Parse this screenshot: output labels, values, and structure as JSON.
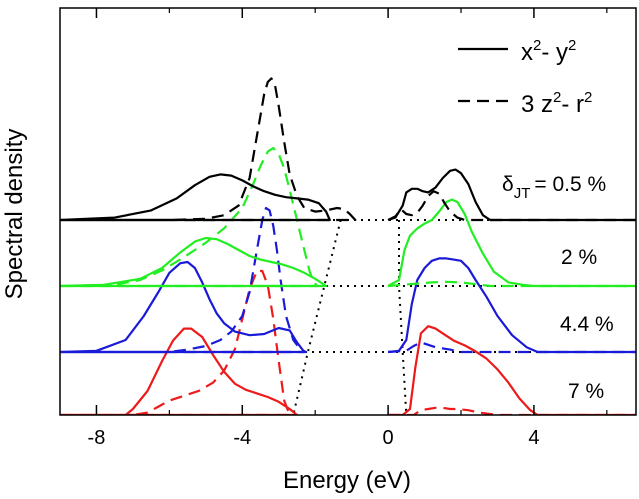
{
  "chart_data": {
    "type": "line",
    "title": "",
    "xlabel": "Energy (eV)",
    "ylabel": "Spectral density",
    "xlim": [
      -9,
      6.8
    ],
    "xticks": [
      -8,
      -4,
      0,
      4
    ],
    "xtick_labels": [
      "-8",
      "-4",
      "0",
      "4"
    ],
    "legend": {
      "placement": "top-right",
      "entries": [
        {
          "style": "solid",
          "label_base": "x",
          "sup1": "2",
          "mid": "- y",
          "sup2": "2"
        },
        {
          "style": "dashed",
          "label_base": "3 z",
          "sup1": "2",
          "mid": "- r",
          "sup2": "2"
        }
      ]
    },
    "label_prefix": "δ",
    "label_subscript": "JT",
    "label_eq": "= 0.5 %",
    "panels": [
      {
        "label": "= 0.5 %",
        "color": "#000000",
        "series": [
          {
            "name": "x²-y²",
            "style": "solid",
            "x": [
              -9,
              -7.5,
              -6.5,
              -5.8,
              -5.3,
              -4.9,
              -4.6,
              -4.3,
              -4,
              -3.7,
              -3.4,
              -3.1,
              -2.8,
              -2.5,
              -2.2,
              -1.9,
              -1.7,
              -1.6,
              -9
            ],
            "y": [
              0,
              0.02,
              0.08,
              0.18,
              0.29,
              0.36,
              0.38,
              0.37,
              0.33,
              0.28,
              0.24,
              0.21,
              0.19,
              0.18,
              0.17,
              0.14,
              0.07,
              0,
              0
            ]
          },
          {
            "name": "x²-y²",
            "style": "solid",
            "x": [
              0,
              0.2,
              0.4,
              0.5,
              0.65,
              0.8,
              0.95,
              1.1,
              1.3,
              1.5,
              1.7,
              1.85,
              2.0,
              2.2,
              2.4,
              2.6,
              2.8,
              6.8
            ],
            "y": [
              0,
              0.02,
              0.12,
              0.23,
              0.26,
              0.26,
              0.24,
              0.23,
              0.27,
              0.35,
              0.41,
              0.42,
              0.39,
              0.3,
              0.15,
              0.04,
              0,
              0
            ]
          },
          {
            "name": "3z²-r²",
            "style": "dashed",
            "x": [
              -9,
              -6,
              -5,
              -4.5,
              -4.1,
              -3.8,
              -3.6,
              -3.4,
              -3.3,
              -3.2,
              -3.1,
              -3.0,
              -2.85,
              -2.7,
              -2.5,
              -2.3,
              -2.0,
              -1.7,
              -1.4,
              -1.2,
              -1.05,
              -0.9,
              -9
            ],
            "y": [
              0,
              0,
              0.01,
              0.04,
              0.12,
              0.35,
              0.7,
              1.05,
              1.15,
              1.18,
              1.12,
              0.95,
              0.65,
              0.38,
              0.2,
              0.1,
              0.07,
              0.08,
              0.1,
              0.09,
              0.05,
              0,
              0
            ]
          },
          {
            "name": "3z²-r²",
            "style": "dashed",
            "x": [
              0,
              0.2,
              0.35,
              0.5,
              0.65,
              0.8,
              0.95,
              1.1,
              1.25,
              1.4,
              1.55,
              1.7,
              1.9,
              2.1,
              6.8
            ],
            "y": [
              0,
              0.03,
              0.09,
              0.05,
              0.04,
              0.06,
              0.12,
              0.2,
              0.24,
              0.22,
              0.14,
              0.07,
              0.02,
              0,
              0
            ]
          }
        ]
      },
      {
        "label": "2 %",
        "color": "#22ee22",
        "series": [
          {
            "name": "x²-y²",
            "style": "solid",
            "x": [
              -9,
              -7.8,
              -6.8,
              -6.2,
              -5.7,
              -5.3,
              -5.0,
              -4.7,
              -4.4,
              -4.1,
              -3.8,
              -3.5,
              -3.2,
              -2.9,
              -2.6,
              -2.3,
              -2.0,
              -1.8,
              -1.7,
              -9
            ],
            "y": [
              0,
              0.01,
              0.06,
              0.15,
              0.28,
              0.37,
              0.4,
              0.39,
              0.35,
              0.3,
              0.25,
              0.22,
              0.2,
              0.18,
              0.15,
              0.11,
              0.06,
              0.02,
              0,
              0
            ]
          },
          {
            "name": "x²-y²",
            "style": "solid",
            "x": [
              0,
              0.3,
              0.45,
              0.6,
              0.8,
              1.0,
              1.2,
              1.4,
              1.6,
              1.75,
              1.9,
              2.1,
              2.3,
              2.6,
              2.9,
              3.3,
              3.7,
              4.0,
              6.8
            ],
            "y": [
              0,
              0.05,
              0.3,
              0.42,
              0.48,
              0.52,
              0.55,
              0.62,
              0.7,
              0.72,
              0.7,
              0.6,
              0.45,
              0.27,
              0.12,
              0.03,
              0.01,
              0,
              0
            ]
          },
          {
            "name": "3z²-r²",
            "style": "dashed",
            "x": [
              -9,
              -7.5,
              -6.8,
              -6.2,
              -5.6,
              -5.0,
              -4.5,
              -4.0,
              -3.7,
              -3.5,
              -3.3,
              -3.15,
              -3.0,
              -2.85,
              -2.7,
              -2.5,
              -2.3,
              -2.15,
              -2.05,
              -1.95,
              -9
            ],
            "y": [
              0,
              0.01,
              0.05,
              0.13,
              0.24,
              0.36,
              0.48,
              0.65,
              0.85,
              1.0,
              1.12,
              1.15,
              1.1,
              0.98,
              0.8,
              0.55,
              0.3,
              0.12,
              0.04,
              0,
              0
            ]
          },
          {
            "name": "3z²-r²",
            "style": "dashed",
            "x": [
              0,
              0.4,
              0.8,
              1.2,
              1.6,
              2.0,
              2.4,
              2.8,
              6.8
            ],
            "y": [
              0,
              0.01,
              0.02,
              0.03,
              0.035,
              0.03,
              0.015,
              0,
              0
            ]
          }
        ]
      },
      {
        "label": "4.4 %",
        "color": "#1a1ad8",
        "series": [
          {
            "name": "x²-y²",
            "style": "solid",
            "x": [
              -9,
              -8,
              -7.2,
              -6.7,
              -6.3,
              -6.0,
              -5.7,
              -5.5,
              -5.3,
              -5.1,
              -4.9,
              -4.7,
              -4.5,
              -4.2,
              -3.8,
              -3.4,
              -3.0,
              -2.7,
              -2.5,
              -2.3,
              -9
            ],
            "y": [
              0,
              0.01,
              0.1,
              0.3,
              0.5,
              0.66,
              0.74,
              0.75,
              0.7,
              0.58,
              0.44,
              0.32,
              0.24,
              0.17,
              0.14,
              0.15,
              0.2,
              0.18,
              0.08,
              0,
              0
            ]
          },
          {
            "name": "x²-y²",
            "style": "solid",
            "x": [
              0,
              0.3,
              0.5,
              0.65,
              0.8,
              1.0,
              1.2,
              1.4,
              1.6,
              1.8,
              2.0,
              2.2,
              2.4,
              2.7,
              3.0,
              3.4,
              3.8,
              4.1,
              6.8
            ],
            "y": [
              0,
              0.01,
              0.1,
              0.4,
              0.6,
              0.7,
              0.76,
              0.78,
              0.78,
              0.77,
              0.76,
              0.7,
              0.6,
              0.46,
              0.3,
              0.14,
              0.04,
              0,
              0
            ]
          },
          {
            "name": "3z²-r²",
            "style": "dashed",
            "x": [
              -9,
              -6,
              -5.5,
              -5.0,
              -4.6,
              -4.3,
              -4.0,
              -3.8,
              -3.6,
              -3.45,
              -3.35,
              -3.25,
              -3.15,
              -3.05,
              -2.95,
              -2.8,
              -2.6,
              -2.4,
              -2.25,
              -9
            ],
            "y": [
              0,
              0,
              0.02,
              0.05,
              0.1,
              0.17,
              0.3,
              0.5,
              0.85,
              1.1,
              1.2,
              1.18,
              1.05,
              0.85,
              0.6,
              0.3,
              0.1,
              0.02,
              0,
              0
            ]
          },
          {
            "name": "3z²-r²",
            "style": "dashed",
            "x": [
              0,
              0.5,
              0.7,
              0.9,
              1.1,
              1.3,
              1.5,
              1.7,
              2.0,
              6.8
            ],
            "y": [
              0,
              0.01,
              0.05,
              0.08,
              0.06,
              0.04,
              0.03,
              0.02,
              0,
              0
            ]
          }
        ]
      },
      {
        "label": "7 %",
        "color": "#ee1a1a",
        "series": [
          {
            "name": "x²-y²",
            "style": "solid",
            "x": [
              -9,
              -7.2,
              -7.0,
              -6.6,
              -6.2,
              -5.9,
              -5.6,
              -5.4,
              -5.1,
              -4.8,
              -4.5,
              -4.2,
              -3.9,
              -3.6,
              -3.3,
              -3.0,
              -2.7,
              -2.5,
              -9
            ],
            "y": [
              0,
              0,
              0.05,
              0.2,
              0.45,
              0.62,
              0.72,
              0.72,
              0.65,
              0.5,
              0.36,
              0.26,
              0.21,
              0.18,
              0.15,
              0.11,
              0.05,
              0,
              0
            ]
          },
          {
            "name": "x²-y²",
            "style": "solid",
            "x": [
              0,
              0.4,
              0.6,
              0.75,
              0.9,
              1.1,
              1.3,
              1.5,
              1.8,
              2.1,
              2.4,
              2.7,
              3.0,
              3.3,
              3.6,
              3.9,
              4.1,
              6.8
            ],
            "y": [
              0,
              0,
              0.05,
              0.4,
              0.68,
              0.74,
              0.72,
              0.68,
              0.62,
              0.58,
              0.53,
              0.47,
              0.38,
              0.27,
              0.14,
              0.04,
              0,
              0
            ]
          },
          {
            "name": "3z²-r²",
            "style": "dashed",
            "x": [
              -9,
              -7,
              -6.6,
              -6.3,
              -6.0,
              -5.6,
              -5.2,
              -4.8,
              -4.5,
              -4.2,
              -4.0,
              -3.8,
              -3.6,
              -3.45,
              -3.3,
              -3.15,
              -3.0,
              -2.85,
              -2.7,
              -9
            ],
            "y": [
              0,
              0,
              0.02,
              0.07,
              0.12,
              0.16,
              0.2,
              0.27,
              0.37,
              0.55,
              0.8,
              1.05,
              1.2,
              1.2,
              1.08,
              0.8,
              0.45,
              0.12,
              0,
              0
            ]
          },
          {
            "name": "3z²-r²",
            "style": "dashed",
            "x": [
              0,
              0.7,
              0.9,
              1.1,
              1.3,
              1.5,
              1.7,
              1.9,
              2.2,
              2.5,
              3.0,
              6.8
            ],
            "y": [
              0,
              0,
              0.04,
              0.05,
              0.06,
              0.06,
              0.05,
              0.05,
              0.04,
              0.02,
              0,
              0
            ]
          }
        ]
      }
    ],
    "band_edges_dotted": {
      "left_x": [
        -1.3,
        -1.75,
        -2.2,
        -2.6
      ],
      "right_x": [
        0.3,
        0.3,
        0.4,
        0.5
      ]
    }
  }
}
